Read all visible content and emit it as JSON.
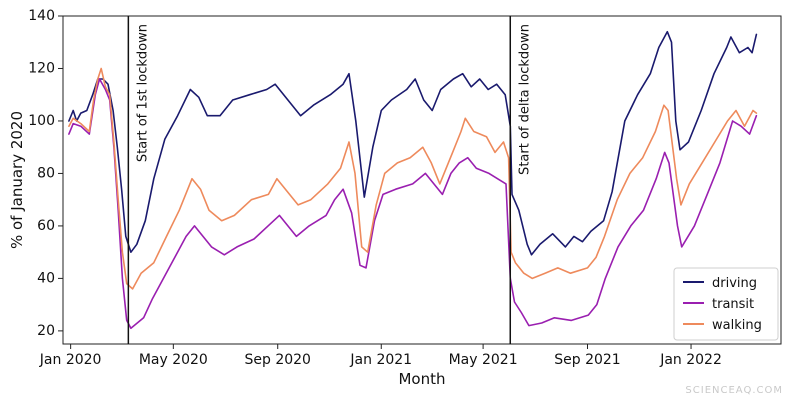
{
  "watermark": "SCIENCEAQ.COM",
  "chart_data": {
    "type": "line",
    "title": "",
    "xlabel": "Month",
    "ylabel": "% of January 2020",
    "ylim": [
      15,
      140
    ],
    "xlim": [
      "2020-01-06",
      "2022-05-01"
    ],
    "y_ticks": [
      20,
      40,
      60,
      80,
      100,
      120,
      140
    ],
    "x_ticks": [
      {
        "date": "2020-01-15",
        "label": "Jan 2020"
      },
      {
        "date": "2020-05-15",
        "label": "May 2020"
      },
      {
        "date": "2020-09-15",
        "label": "Sep 2020"
      },
      {
        "date": "2021-01-15",
        "label": "Jan 2021"
      },
      {
        "date": "2021-05-15",
        "label": "May 2021"
      },
      {
        "date": "2021-09-15",
        "label": "Sep 2021"
      },
      {
        "date": "2022-01-15",
        "label": "Jan 2022"
      }
    ],
    "legend": {
      "position": "bottom-right"
    },
    "grid": false,
    "annotations": [
      {
        "date": "2020-03-23",
        "label": "Start of 1st lockdown"
      },
      {
        "date": "2021-06-16",
        "label": "Start of delta lockdown"
      }
    ],
    "series": [
      {
        "name": "driving",
        "color": "#1a1a6e",
        "points": [
          [
            "2020-01-13",
            100
          ],
          [
            "2020-01-18",
            104
          ],
          [
            "2020-01-22",
            100
          ],
          [
            "2020-01-27",
            103
          ],
          [
            "2020-02-03",
            104
          ],
          [
            "2020-02-10",
            110
          ],
          [
            "2020-02-16",
            116
          ],
          [
            "2020-02-22",
            116
          ],
          [
            "2020-02-28",
            114
          ],
          [
            "2020-03-05",
            104
          ],
          [
            "2020-03-10",
            90
          ],
          [
            "2020-03-15",
            74
          ],
          [
            "2020-03-20",
            56
          ],
          [
            "2020-03-26",
            50
          ],
          [
            "2020-04-02",
            53
          ],
          [
            "2020-04-12",
            62
          ],
          [
            "2020-04-22",
            78
          ],
          [
            "2020-05-05",
            93
          ],
          [
            "2020-05-20",
            102
          ],
          [
            "2020-06-04",
            112
          ],
          [
            "2020-06-14",
            109
          ],
          [
            "2020-06-24",
            102
          ],
          [
            "2020-07-09",
            102
          ],
          [
            "2020-07-24",
            108
          ],
          [
            "2020-08-13",
            110
          ],
          [
            "2020-09-02",
            112
          ],
          [
            "2020-09-12",
            114
          ],
          [
            "2020-09-27",
            108
          ],
          [
            "2020-10-12",
            102
          ],
          [
            "2020-10-27",
            106
          ],
          [
            "2020-11-16",
            110
          ],
          [
            "2020-12-01",
            114
          ],
          [
            "2020-12-08",
            118
          ],
          [
            "2020-12-16",
            100
          ],
          [
            "2020-12-26",
            71
          ],
          [
            "2021-01-05",
            90
          ],
          [
            "2021-01-15",
            104
          ],
          [
            "2021-01-27",
            108
          ],
          [
            "2021-02-14",
            112
          ],
          [
            "2021-02-24",
            116
          ],
          [
            "2021-03-06",
            108
          ],
          [
            "2021-03-16",
            104
          ],
          [
            "2021-03-26",
            112
          ],
          [
            "2021-04-10",
            116
          ],
          [
            "2021-04-21",
            118
          ],
          [
            "2021-05-01",
            113
          ],
          [
            "2021-05-11",
            116
          ],
          [
            "2021-05-21",
            112
          ],
          [
            "2021-05-31",
            114
          ],
          [
            "2021-06-10",
            110
          ],
          [
            "2021-06-16",
            98
          ],
          [
            "2021-06-18",
            72
          ],
          [
            "2021-06-26",
            66
          ],
          [
            "2021-07-06",
            53
          ],
          [
            "2021-07-11",
            49
          ],
          [
            "2021-07-21",
            53
          ],
          [
            "2021-08-05",
            57
          ],
          [
            "2021-08-20",
            52
          ],
          [
            "2021-08-30",
            56
          ],
          [
            "2021-09-09",
            54
          ],
          [
            "2021-09-19",
            58
          ],
          [
            "2021-10-04",
            62
          ],
          [
            "2021-10-14",
            73
          ],
          [
            "2021-10-29",
            100
          ],
          [
            "2021-11-13",
            110
          ],
          [
            "2021-11-28",
            118
          ],
          [
            "2021-12-08",
            128
          ],
          [
            "2021-12-18",
            134
          ],
          [
            "2021-12-23",
            130
          ],
          [
            "2021-12-28",
            100
          ],
          [
            "2022-01-02",
            89
          ],
          [
            "2022-01-12",
            92
          ],
          [
            "2022-01-27",
            104
          ],
          [
            "2022-02-11",
            118
          ],
          [
            "2022-02-26",
            128
          ],
          [
            "2022-03-03",
            132
          ],
          [
            "2022-03-13",
            126
          ],
          [
            "2022-03-23",
            128
          ],
          [
            "2022-03-28",
            126
          ],
          [
            "2022-04-02",
            133
          ]
        ]
      },
      {
        "name": "transit",
        "color": "#9a1fb0",
        "points": [
          [
            "2020-01-13",
            95
          ],
          [
            "2020-01-18",
            99
          ],
          [
            "2020-01-27",
            98
          ],
          [
            "2020-02-06",
            95
          ],
          [
            "2020-02-13",
            110
          ],
          [
            "2020-02-18",
            116
          ],
          [
            "2020-02-25",
            112
          ],
          [
            "2020-03-01",
            108
          ],
          [
            "2020-03-06",
            90
          ],
          [
            "2020-03-11",
            66
          ],
          [
            "2020-03-16",
            40
          ],
          [
            "2020-03-21",
            24
          ],
          [
            "2020-03-26",
            21
          ],
          [
            "2020-04-10",
            25
          ],
          [
            "2020-04-20",
            32
          ],
          [
            "2020-05-10",
            44
          ],
          [
            "2020-05-30",
            56
          ],
          [
            "2020-06-09",
            60
          ],
          [
            "2020-06-19",
            56
          ],
          [
            "2020-06-29",
            52
          ],
          [
            "2020-07-14",
            49
          ],
          [
            "2020-07-29",
            52
          ],
          [
            "2020-08-18",
            55
          ],
          [
            "2020-09-07",
            61
          ],
          [
            "2020-09-17",
            64
          ],
          [
            "2020-09-27",
            60
          ],
          [
            "2020-10-07",
            56
          ],
          [
            "2020-10-22",
            60
          ],
          [
            "2020-11-11",
            64
          ],
          [
            "2020-11-21",
            70
          ],
          [
            "2020-12-01",
            74
          ],
          [
            "2020-12-11",
            65
          ],
          [
            "2020-12-21",
            45
          ],
          [
            "2020-12-28",
            44
          ],
          [
            "2021-01-07",
            62
          ],
          [
            "2021-01-17",
            72
          ],
          [
            "2021-02-01",
            74
          ],
          [
            "2021-02-21",
            76
          ],
          [
            "2021-03-08",
            80
          ],
          [
            "2021-03-18",
            76
          ],
          [
            "2021-03-28",
            72
          ],
          [
            "2021-04-07",
            80
          ],
          [
            "2021-04-17",
            84
          ],
          [
            "2021-04-27",
            86
          ],
          [
            "2021-05-07",
            82
          ],
          [
            "2021-05-22",
            80
          ],
          [
            "2021-06-01",
            78
          ],
          [
            "2021-06-11",
            76
          ],
          [
            "2021-06-16",
            40
          ],
          [
            "2021-06-21",
            31
          ],
          [
            "2021-06-29",
            27
          ],
          [
            "2021-07-08",
            22
          ],
          [
            "2021-07-23",
            23
          ],
          [
            "2021-08-07",
            25
          ],
          [
            "2021-08-27",
            24
          ],
          [
            "2021-09-16",
            26
          ],
          [
            "2021-09-26",
            30
          ],
          [
            "2021-10-06",
            40
          ],
          [
            "2021-10-21",
            52
          ],
          [
            "2021-11-05",
            60
          ],
          [
            "2021-11-20",
            66
          ],
          [
            "2021-12-05",
            78
          ],
          [
            "2021-12-15",
            88
          ],
          [
            "2021-12-20",
            84
          ],
          [
            "2021-12-30",
            60
          ],
          [
            "2022-01-04",
            52
          ],
          [
            "2022-01-19",
            60
          ],
          [
            "2022-02-03",
            72
          ],
          [
            "2022-02-18",
            84
          ],
          [
            "2022-03-05",
            100
          ],
          [
            "2022-03-15",
            98
          ],
          [
            "2022-03-25",
            95
          ],
          [
            "2022-04-02",
            102
          ]
        ]
      },
      {
        "name": "walking",
        "color": "#ee8a5c",
        "points": [
          [
            "2020-01-13",
            98
          ],
          [
            "2020-01-18",
            101
          ],
          [
            "2020-01-27",
            99
          ],
          [
            "2020-02-06",
            96
          ],
          [
            "2020-02-11",
            108
          ],
          [
            "2020-02-16",
            116
          ],
          [
            "2020-02-20",
            120
          ],
          [
            "2020-02-25",
            113
          ],
          [
            "2020-03-01",
            110
          ],
          [
            "2020-03-06",
            92
          ],
          [
            "2020-03-11",
            70
          ],
          [
            "2020-03-16",
            50
          ],
          [
            "2020-03-21",
            38
          ],
          [
            "2020-03-28",
            36
          ],
          [
            "2020-04-07",
            42
          ],
          [
            "2020-04-22",
            46
          ],
          [
            "2020-05-07",
            56
          ],
          [
            "2020-05-22",
            66
          ],
          [
            "2020-06-06",
            78
          ],
          [
            "2020-06-16",
            74
          ],
          [
            "2020-06-26",
            66
          ],
          [
            "2020-07-11",
            62
          ],
          [
            "2020-07-26",
            64
          ],
          [
            "2020-08-15",
            70
          ],
          [
            "2020-09-04",
            72
          ],
          [
            "2020-09-14",
            78
          ],
          [
            "2020-09-24",
            74
          ],
          [
            "2020-10-09",
            68
          ],
          [
            "2020-10-24",
            70
          ],
          [
            "2020-11-13",
            76
          ],
          [
            "2020-11-28",
            82
          ],
          [
            "2020-12-08",
            92
          ],
          [
            "2020-12-15",
            80
          ],
          [
            "2020-12-23",
            52
          ],
          [
            "2020-12-30",
            50
          ],
          [
            "2021-01-09",
            68
          ],
          [
            "2021-01-19",
            80
          ],
          [
            "2021-02-03",
            84
          ],
          [
            "2021-02-18",
            86
          ],
          [
            "2021-03-05",
            90
          ],
          [
            "2021-03-15",
            84
          ],
          [
            "2021-03-25",
            76
          ],
          [
            "2021-04-09",
            88
          ],
          [
            "2021-04-19",
            96
          ],
          [
            "2021-04-24",
            101
          ],
          [
            "2021-05-04",
            96
          ],
          [
            "2021-05-19",
            94
          ],
          [
            "2021-05-29",
            88
          ],
          [
            "2021-06-08",
            92
          ],
          [
            "2021-06-14",
            86
          ],
          [
            "2021-06-17",
            50
          ],
          [
            "2021-06-22",
            46
          ],
          [
            "2021-07-02",
            42
          ],
          [
            "2021-07-12",
            40
          ],
          [
            "2021-07-27",
            42
          ],
          [
            "2021-08-11",
            44
          ],
          [
            "2021-08-26",
            42
          ],
          [
            "2021-09-15",
            44
          ],
          [
            "2021-09-25",
            48
          ],
          [
            "2021-10-05",
            56
          ],
          [
            "2021-10-20",
            70
          ],
          [
            "2021-11-04",
            80
          ],
          [
            "2021-11-19",
            86
          ],
          [
            "2021-12-04",
            96
          ],
          [
            "2021-12-14",
            106
          ],
          [
            "2021-12-19",
            104
          ],
          [
            "2021-12-29",
            78
          ],
          [
            "2022-01-03",
            68
          ],
          [
            "2022-01-13",
            76
          ],
          [
            "2022-01-28",
            84
          ],
          [
            "2022-02-12",
            92
          ],
          [
            "2022-02-27",
            100
          ],
          [
            "2022-03-09",
            104
          ],
          [
            "2022-03-19",
            98
          ],
          [
            "2022-03-29",
            104
          ],
          [
            "2022-04-02",
            103
          ]
        ]
      }
    ]
  }
}
